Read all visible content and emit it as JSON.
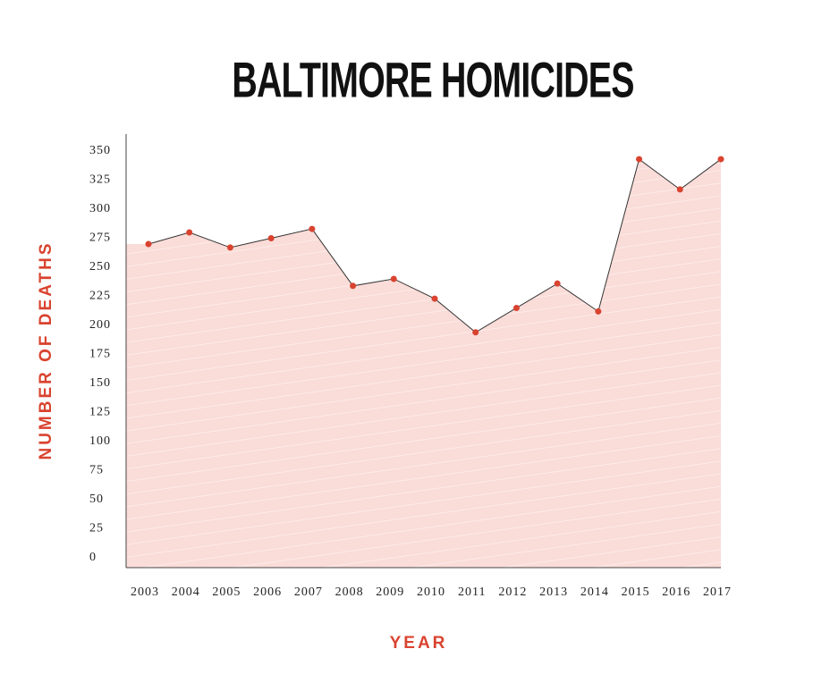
{
  "chart_data": {
    "type": "area",
    "title": "BALTIMORE HOMICIDES",
    "x_label": "YEAR",
    "y_label": "NUMBER OF DEATHS",
    "categories": [
      "2003",
      "2004",
      "2005",
      "2006",
      "2007",
      "2008",
      "2009",
      "2010",
      "2011",
      "2012",
      "2013",
      "2014",
      "2015",
      "2016",
      "2017"
    ],
    "values": [
      270,
      280,
      267,
      275,
      283,
      234,
      240,
      223,
      194,
      215,
      236,
      212,
      343,
      317,
      343
    ],
    "color": "#fadcd8",
    "line_color": "#333333",
    "marker_color": "#d9432f",
    "ylim": [
      -8.5,
      364.6
    ],
    "yticks": [
      0,
      25,
      50,
      75,
      100,
      125,
      150,
      175,
      200,
      225,
      250,
      275,
      300,
      325,
      350
    ],
    "grid": false
  }
}
